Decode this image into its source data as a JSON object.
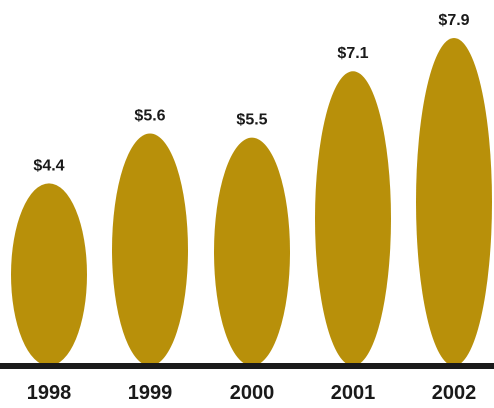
{
  "chart_data": {
    "type": "bar",
    "categories": [
      "1998",
      "1999",
      "2000",
      "2001",
      "2002"
    ],
    "values": [
      4.4,
      5.6,
      5.5,
      7.1,
      7.9
    ],
    "value_labels": [
      "$4.4",
      "$5.6",
      "$5.5",
      "$7.1",
      "$7.9"
    ],
    "title": "",
    "xlabel": "",
    "ylabel": "",
    "ylim": [
      0,
      7.9
    ],
    "grid": false,
    "legend": "none",
    "bar_shape": "ellipse",
    "colors": {
      "bar": "#B8900A",
      "baseline": "#1a1a1a",
      "text": "#1a1a1a"
    }
  }
}
